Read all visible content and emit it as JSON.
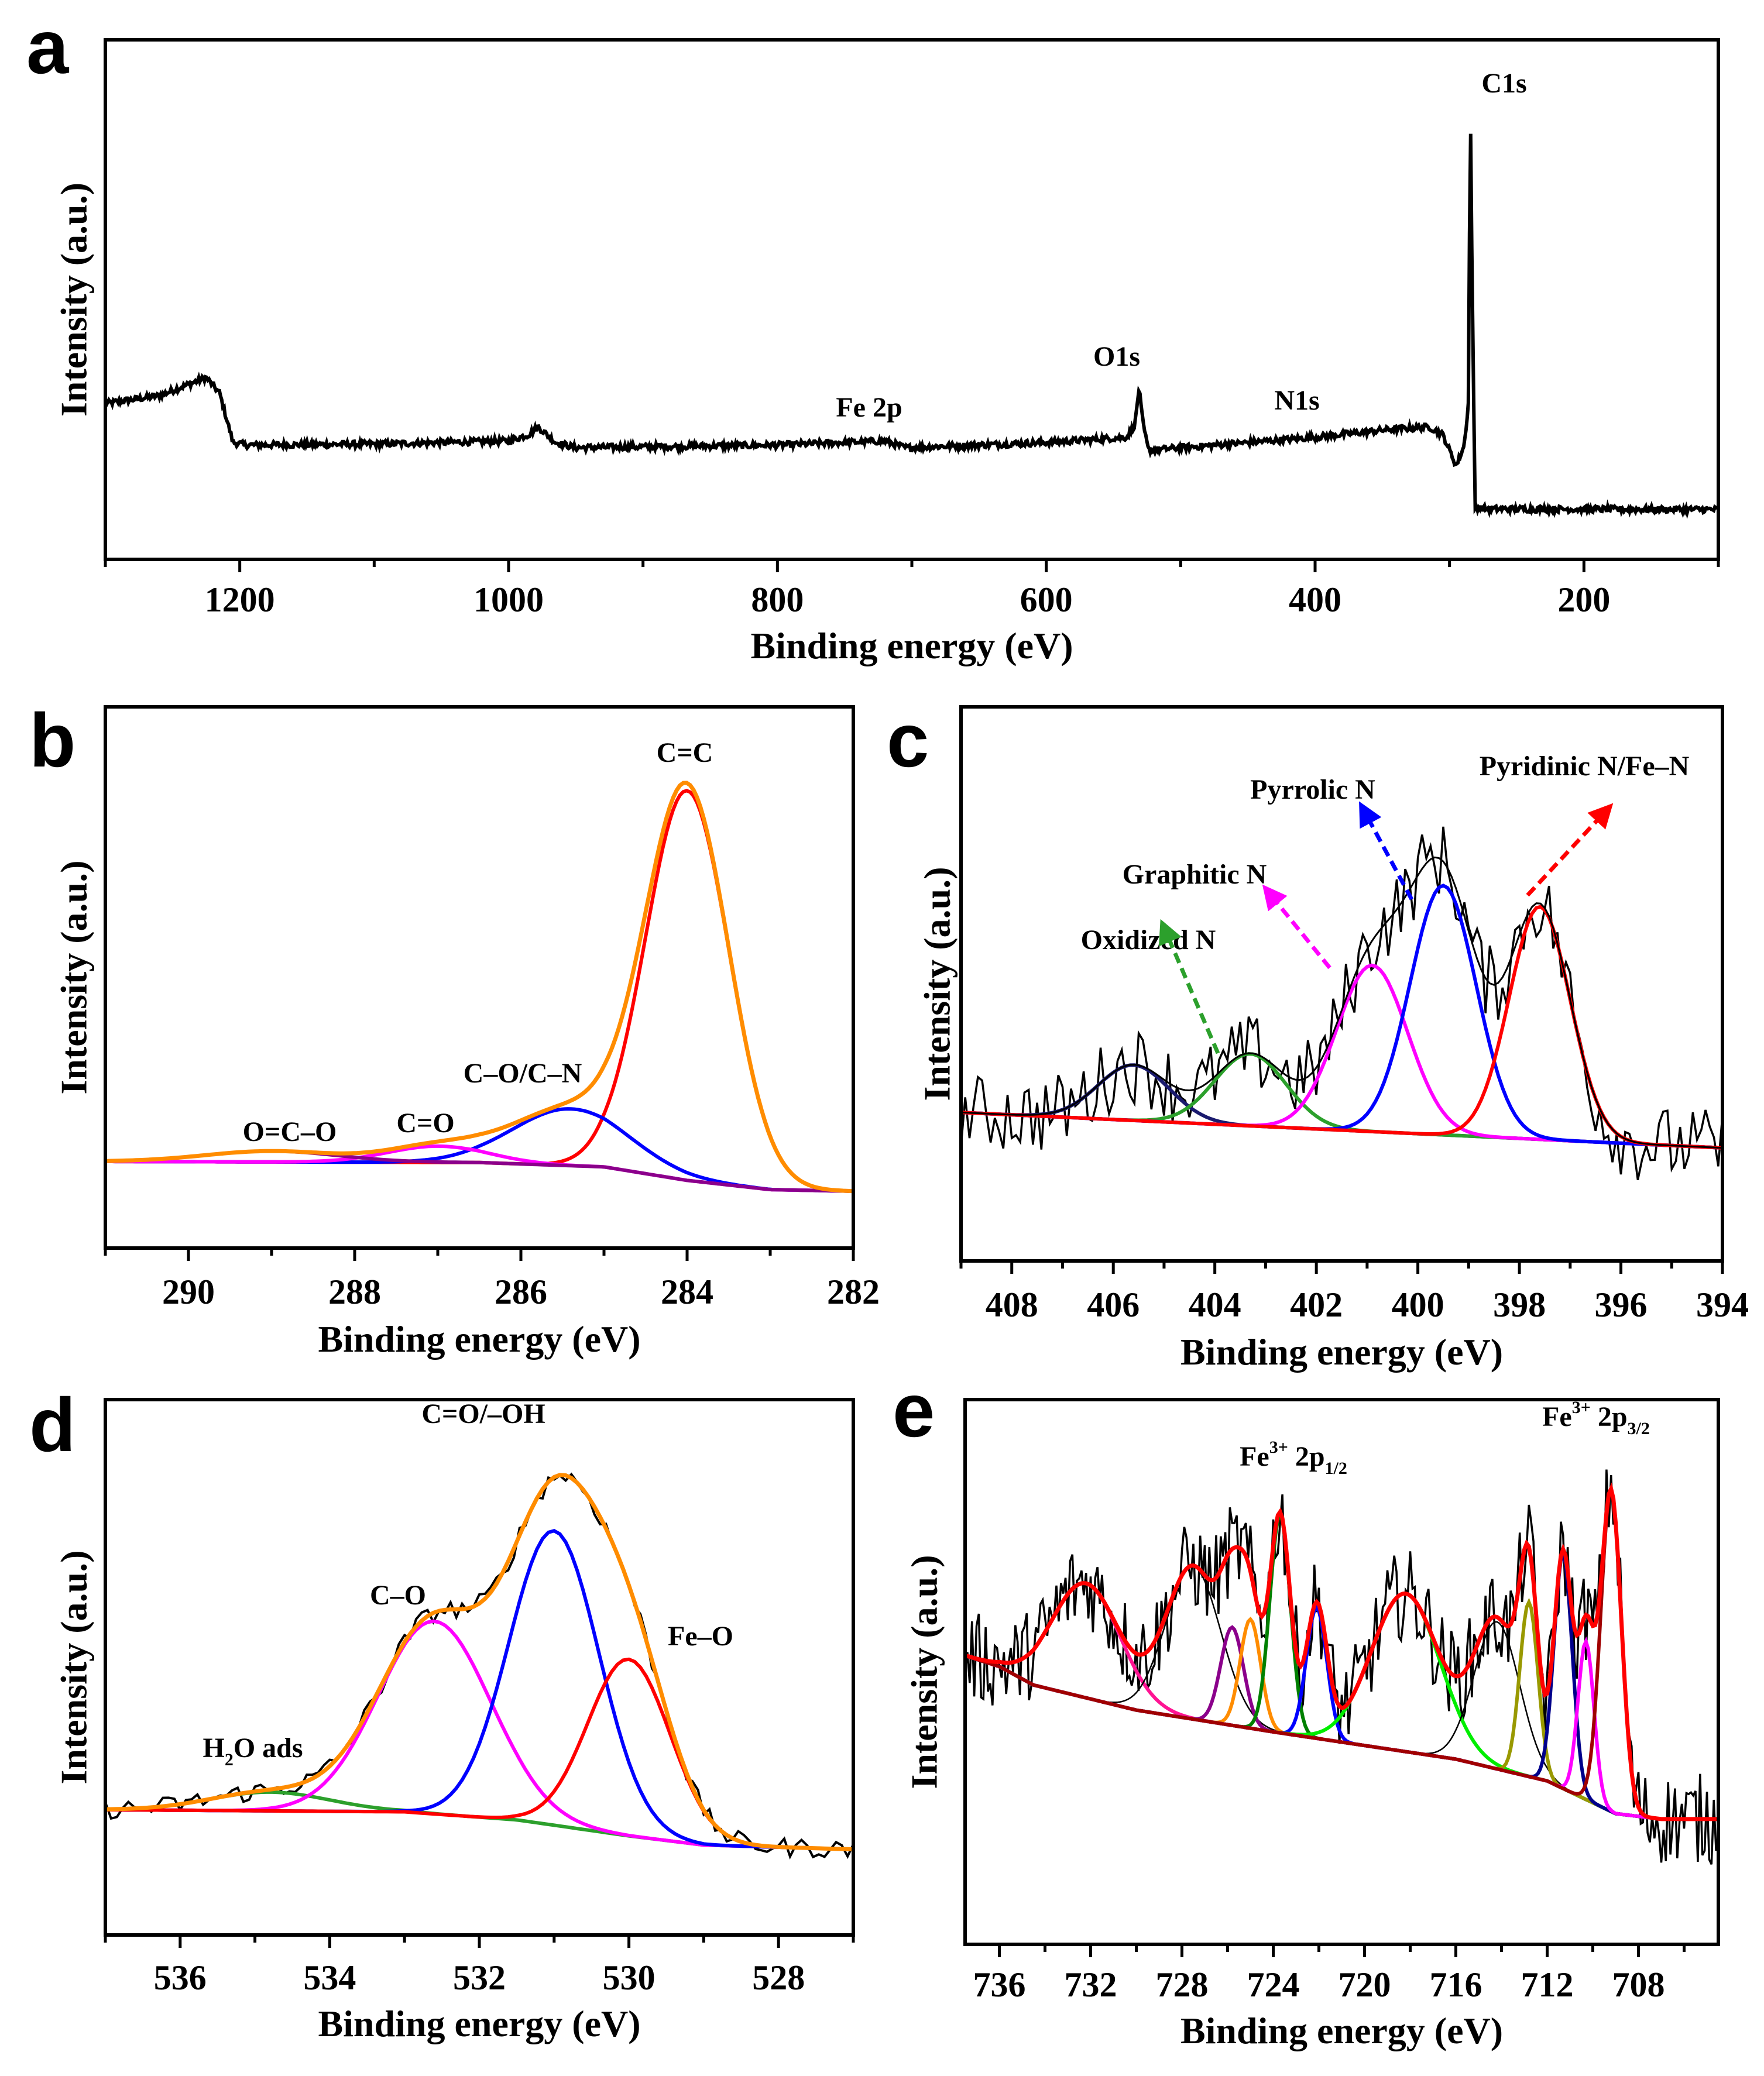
{
  "chart_data": [
    {
      "panel": "a",
      "type": "line",
      "xlabel": "Binding energy (eV)",
      "ylabel": "Intensity (a.u.)",
      "xlim": [
        1300,
        100
      ],
      "ylim": [
        0,
        1
      ],
      "xticks": [
        1200,
        1000,
        800,
        600,
        400,
        200
      ],
      "xtick_labels": [
        "1200",
        "1000",
        "800",
        "600",
        "400",
        "200"
      ],
      "minor_step": 100,
      "survey": [
        [
          1300,
          0.3
        ],
        [
          1260,
          0.315
        ],
        [
          1235,
          0.34
        ],
        [
          1225,
          0.35
        ],
        [
          1215,
          0.32
        ],
        [
          1205,
          0.225
        ],
        [
          1195,
          0.22
        ],
        [
          1100,
          0.222
        ],
        [
          1000,
          0.228
        ],
        [
          985,
          0.24
        ],
        [
          978,
          0.255
        ],
        [
          965,
          0.225
        ],
        [
          950,
          0.215
        ],
        [
          800,
          0.22
        ],
        [
          720,
          0.228
        ],
        [
          705,
          0.215
        ],
        [
          600,
          0.225
        ],
        [
          540,
          0.235
        ],
        [
          534,
          0.26
        ],
        [
          531,
          0.33
        ],
        [
          528,
          0.26
        ],
        [
          524,
          0.21
        ],
        [
          450,
          0.225
        ],
        [
          400,
          0.235
        ],
        [
          345,
          0.25
        ],
        [
          315,
          0.255
        ],
        [
          305,
          0.24
        ],
        [
          295,
          0.18
        ],
        [
          289,
          0.22
        ],
        [
          286,
          0.3
        ],
        [
          284.5,
          0.87
        ],
        [
          283,
          0.5
        ],
        [
          281,
          0.1
        ],
        [
          270,
          0.097
        ],
        [
          100,
          0.096
        ]
      ],
      "annotations": [
        "C1s",
        "O1s",
        "Fe 2p",
        "N1s"
      ]
    },
    {
      "panel": "b",
      "type": "line",
      "xlabel": "Binding energy (eV)",
      "ylabel": "Intensity (a.u.)",
      "xlim": [
        291,
        282
      ],
      "ylim": [
        0,
        1
      ],
      "xticks": [
        290,
        288,
        286,
        284,
        282
      ],
      "xtick_labels": [
        "290",
        "288",
        "286",
        "284",
        "282"
      ],
      "minor_step": 1,
      "baseline": [
        [
          291,
          0.16
        ],
        [
          286.5,
          0.158
        ],
        [
          285,
          0.15
        ],
        [
          284,
          0.125
        ],
        [
          283,
          0.108
        ],
        [
          282,
          0.105
        ]
      ],
      "baseline_color": "#1f5f3f",
      "envelope_color": "#ff8c00",
      "components": [
        {
          "name": "C=C",
          "center": 284.0,
          "amplitude": 0.72,
          "sigma": 0.5,
          "color": "#ff0000"
        },
        {
          "name": "C–O/C–N",
          "center": 285.4,
          "amplitude": 0.105,
          "sigma": 0.7,
          "color": "#0000ff"
        },
        {
          "name": "C=O",
          "center": 287.0,
          "amplitude": 0.03,
          "sigma": 0.6,
          "color": "#ff00ff"
        },
        {
          "name": "O=C–O",
          "center": 289.0,
          "amplitude": 0.02,
          "sigma": 0.8,
          "color": "#8b008b"
        }
      ]
    },
    {
      "panel": "c",
      "type": "line",
      "xlabel": "Binding energy (eV)",
      "ylabel": "Intensity (a.u.)",
      "xlim": [
        409,
        394
      ],
      "ylim": [
        0,
        1
      ],
      "xticks": [
        408,
        406,
        404,
        402,
        400,
        398,
        396,
        394
      ],
      "xtick_labels": [
        "408",
        "406",
        "404",
        "402",
        "400",
        "398",
        "396",
        "394"
      ],
      "minor_step": 1,
      "baseline": [
        [
          409,
          0.268
        ],
        [
          394,
          0.204
        ]
      ],
      "baseline_color": "#cd853f",
      "envelope_color": "#000000",
      "components": [
        {
          "name": "Oxidized N",
          "center": 405.6,
          "amplitude": 0.1,
          "sigma": 0.7,
          "color": "#1a1a6e"
        },
        {
          "name": "Graphitic N",
          "center": 403.3,
          "amplitude": 0.13,
          "sigma": 0.7,
          "color": "#2ca02c"
        },
        {
          "name": "Pyrrolic N",
          "center": 400.9,
          "amplitude": 0.3,
          "sigma": 0.7,
          "color": "#ff00ff"
        },
        {
          "name": "Pyridinic N/Fe–N",
          "center": 399.5,
          "amplitude": 0.45,
          "sigma": 0.65,
          "color": "#0000ff"
        },
        {
          "name": "",
          "center": 397.6,
          "amplitude": 0.42,
          "sigma": 0.6,
          "color": "#ff0000"
        }
      ],
      "annotations": [
        "Oxidized N",
        "Graphitic N",
        "Pyrrolic N",
        "Pyridinic N/Fe–N"
      ]
    },
    {
      "panel": "d",
      "type": "line",
      "xlabel": "Binding energy (eV)",
      "ylabel": "Intensity (a.u.)",
      "xlim": [
        537,
        527
      ],
      "ylim": [
        0,
        1
      ],
      "xticks": [
        536,
        534,
        532,
        530,
        528
      ],
      "xtick_labels": [
        "536",
        "534",
        "532",
        "530",
        "528"
      ],
      "minor_step": 1,
      "baseline": [
        [
          537,
          0.234
        ],
        [
          533,
          0.23
        ],
        [
          531.5,
          0.215
        ],
        [
          530,
          0.185
        ],
        [
          529,
          0.168
        ],
        [
          527,
          0.16
        ]
      ],
      "baseline_color": "#1f3f5f",
      "envelope_color": "#ff8c00",
      "components": [
        {
          "name": "H2O ads",
          "center": 534.8,
          "amplitude": 0.035,
          "sigma": 0.8,
          "color": "#2ca02c"
        },
        {
          "name": "C–O",
          "center": 532.6,
          "amplitude": 0.36,
          "sigma": 0.75,
          "color": "#ff00ff"
        },
        {
          "name": "C=O/–OH",
          "center": 531.0,
          "amplitude": 0.55,
          "sigma": 0.6,
          "color": "#0000ff"
        },
        {
          "name": "Fe–O",
          "center": 530.0,
          "amplitude": 0.33,
          "sigma": 0.55,
          "color": "#ff0000"
        }
      ],
      "annotations": [
        "C=O/–OH",
        "C–O",
        "Fe–O",
        {
          "base": "H",
          "sub": "2",
          "rest": "O ads"
        }
      ]
    },
    {
      "panel": "e",
      "type": "line",
      "xlabel": "Binding energy (eV)",
      "ylabel": "Intensity (a.u.)",
      "xlim": [
        737.5,
        704.5
      ],
      "ylim": [
        0,
        1
      ],
      "xticks": [
        736,
        732,
        728,
        724,
        720,
        716,
        712,
        708
      ],
      "xtick_labels": [
        "736",
        "732",
        "728",
        "724",
        "720",
        "716",
        "712",
        "708"
      ],
      "minor_step": 2,
      "baseline": [
        [
          737.5,
          0.53
        ],
        [
          736,
          0.51
        ],
        [
          734.5,
          0.476
        ],
        [
          730,
          0.43
        ],
        [
          724,
          0.39
        ],
        [
          716,
          0.34
        ],
        [
          712,
          0.3
        ],
        [
          709,
          0.24
        ],
        [
          707,
          0.23
        ],
        [
          704.5,
          0.23
        ]
      ],
      "baseline_color": "#00dd00",
      "envelope_color": "#ff0000",
      "components": [
        {
          "center": 732.2,
          "amplitude": 0.21,
          "sigma": 1.5,
          "color": "#ff1493"
        },
        {
          "center": 727.5,
          "amplitude": 0.28,
          "sigma": 1.2,
          "color": "#000000"
        },
        {
          "center": 725.8,
          "amplitude": 0.18,
          "sigma": 0.5,
          "color": "#8b008b"
        },
        {
          "center": 725.0,
          "amplitude": 0.2,
          "sigma": 0.45,
          "color": "#ff8c00"
        },
        {
          "center": 723.7,
          "amplitude": 0.4,
          "sigma": 0.45,
          "color": "#008000"
        },
        {
          "center": 722.1,
          "amplitude": 0.24,
          "sigma": 0.45,
          "color": "#0000ff"
        },
        {
          "center": 718.2,
          "amplitude": 0.29,
          "sigma": 1.5,
          "color": "#00ee00"
        },
        {
          "center": 714.2,
          "amplitude": 0.27,
          "sigma": 1.0,
          "color": "#000000"
        },
        {
          "center": 712.8,
          "amplitude": 0.32,
          "sigma": 0.4,
          "color": "#999900"
        },
        {
          "center": 711.3,
          "amplitude": 0.43,
          "sigma": 0.4,
          "color": "#00008b"
        },
        {
          "center": 710.3,
          "amplitude": 0.29,
          "sigma": 0.35,
          "color": "#ff00ff"
        },
        {
          "center": 709.2,
          "amplitude": 0.59,
          "sigma": 0.45,
          "color": "#a00000"
        }
      ],
      "annotations": [
        {
          "base": "Fe",
          "sup": "3+",
          "mid": " 2p",
          "sub": "1/2"
        },
        {
          "base": "Fe",
          "sup": "3+",
          "mid": " 2p",
          "sub": "3/2"
        }
      ]
    }
  ]
}
